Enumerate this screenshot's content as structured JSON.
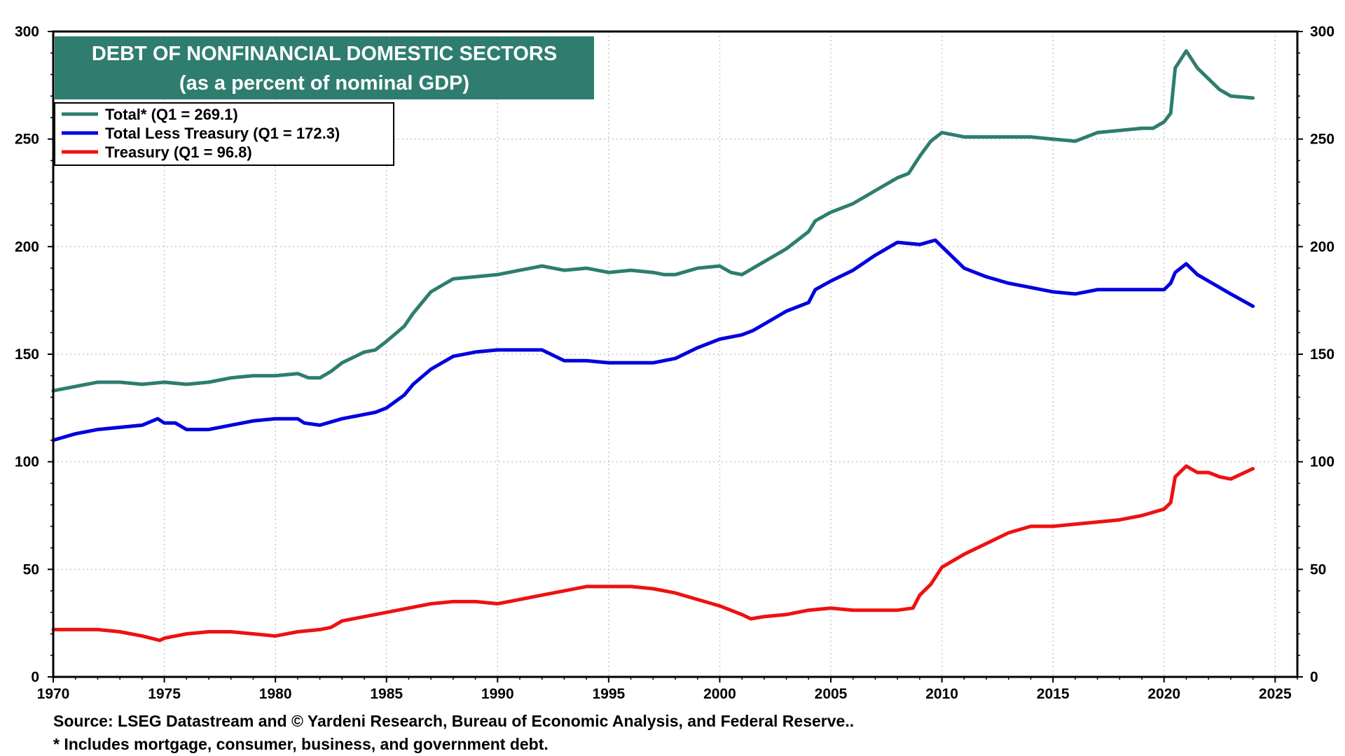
{
  "chart_data": {
    "type": "line",
    "title": "DEBT OF NONFINANCIAL DOMESTIC SECTORS",
    "subtitle": "(as a percent of nominal GDP)",
    "xlabel": "",
    "ylabel": "",
    "xlim": [
      1970,
      2026
    ],
    "ylim": [
      0,
      300
    ],
    "x_ticks": [
      "1970",
      "1975",
      "1980",
      "1985",
      "1990",
      "1995",
      "2000",
      "2005",
      "2010",
      "2015",
      "2020",
      "2025"
    ],
    "y_ticks": [
      "0",
      "50",
      "100",
      "150",
      "200",
      "250",
      "300"
    ],
    "grid": true,
    "legend_position": "top-left",
    "series": [
      {
        "name": "Total* (Q1 = 269.1)",
        "color": "#2e7d6f",
        "points": [
          [
            1970,
            133
          ],
          [
            1971,
            135
          ],
          [
            1972,
            137
          ],
          [
            1973,
            137
          ],
          [
            1974,
            136
          ],
          [
            1975,
            137
          ],
          [
            1976,
            136
          ],
          [
            1977,
            137
          ],
          [
            1978,
            139
          ],
          [
            1979,
            140
          ],
          [
            1980,
            140
          ],
          [
            1981,
            141
          ],
          [
            1981.5,
            139
          ],
          [
            1982,
            139
          ],
          [
            1982.5,
            142
          ],
          [
            1983,
            146
          ],
          [
            1984,
            151
          ],
          [
            1984.5,
            152
          ],
          [
            1985,
            156
          ],
          [
            1985.8,
            163
          ],
          [
            1986.2,
            169
          ],
          [
            1987,
            179
          ],
          [
            1988,
            185
          ],
          [
            1989,
            186
          ],
          [
            1990,
            187
          ],
          [
            1991,
            189
          ],
          [
            1992,
            191
          ],
          [
            1993,
            189
          ],
          [
            1994,
            190
          ],
          [
            1995,
            188
          ],
          [
            1996,
            189
          ],
          [
            1997,
            188
          ],
          [
            1997.5,
            187
          ],
          [
            1998,
            187
          ],
          [
            1999,
            190
          ],
          [
            2000,
            191
          ],
          [
            2000.5,
            188
          ],
          [
            2001,
            187
          ],
          [
            2001.5,
            190
          ],
          [
            2002,
            193
          ],
          [
            2003,
            199
          ],
          [
            2003.5,
            203
          ],
          [
            2004,
            207
          ],
          [
            2004.3,
            212
          ],
          [
            2005,
            216
          ],
          [
            2006,
            220
          ],
          [
            2007,
            226
          ],
          [
            2008,
            232
          ],
          [
            2008.5,
            234
          ],
          [
            2009,
            242
          ],
          [
            2009.5,
            249
          ],
          [
            2010,
            253
          ],
          [
            2011,
            251
          ],
          [
            2012,
            251
          ],
          [
            2013,
            251
          ],
          [
            2014,
            251
          ],
          [
            2015,
            250
          ],
          [
            2016,
            249
          ],
          [
            2017,
            253
          ],
          [
            2018,
            254
          ],
          [
            2019,
            255
          ],
          [
            2019.5,
            255
          ],
          [
            2020,
            258
          ],
          [
            2020.3,
            262
          ],
          [
            2020.5,
            283
          ],
          [
            2021,
            291
          ],
          [
            2021.5,
            283
          ],
          [
            2022,
            278
          ],
          [
            2022.5,
            273
          ],
          [
            2023,
            270
          ],
          [
            2024,
            269.1
          ]
        ]
      },
      {
        "name": "Total Less Treasury (Q1 = 172.3)",
        "color": "#0000dd",
        "points": [
          [
            1970,
            110
          ],
          [
            1971,
            113
          ],
          [
            1972,
            115
          ],
          [
            1973,
            116
          ],
          [
            1974,
            117
          ],
          [
            1974.7,
            120
          ],
          [
            1975,
            118
          ],
          [
            1975.5,
            118
          ],
          [
            1976,
            115
          ],
          [
            1977,
            115
          ],
          [
            1978,
            117
          ],
          [
            1979,
            119
          ],
          [
            1980,
            120
          ],
          [
            1981,
            120
          ],
          [
            1981.3,
            118
          ],
          [
            1982,
            117
          ],
          [
            1983,
            120
          ],
          [
            1984,
            122
          ],
          [
            1984.5,
            123
          ],
          [
            1985,
            125
          ],
          [
            1985.8,
            131
          ],
          [
            1986.2,
            136
          ],
          [
            1987,
            143
          ],
          [
            1988,
            149
          ],
          [
            1989,
            151
          ],
          [
            1990,
            152
          ],
          [
            1991,
            152
          ],
          [
            1992,
            152
          ],
          [
            1993,
            147
          ],
          [
            1994,
            147
          ],
          [
            1995,
            146
          ],
          [
            1996,
            146
          ],
          [
            1997,
            146
          ],
          [
            1998,
            148
          ],
          [
            1999,
            153
          ],
          [
            2000,
            157
          ],
          [
            2001,
            159
          ],
          [
            2001.5,
            161
          ],
          [
            2002,
            164
          ],
          [
            2003,
            170
          ],
          [
            2004,
            174
          ],
          [
            2004.3,
            180
          ],
          [
            2005,
            184
          ],
          [
            2006,
            189
          ],
          [
            2007,
            196
          ],
          [
            2008,
            202
          ],
          [
            2009,
            201
          ],
          [
            2009.7,
            203
          ],
          [
            2010,
            200
          ],
          [
            2011,
            190
          ],
          [
            2012,
            186
          ],
          [
            2013,
            183
          ],
          [
            2014,
            181
          ],
          [
            2015,
            179
          ],
          [
            2016,
            178
          ],
          [
            2017,
            180
          ],
          [
            2018,
            180
          ],
          [
            2019,
            180
          ],
          [
            2020,
            180
          ],
          [
            2020.3,
            183
          ],
          [
            2020.5,
            188
          ],
          [
            2021,
            192
          ],
          [
            2021.5,
            187
          ],
          [
            2022,
            184
          ],
          [
            2023,
            178
          ],
          [
            2024,
            172.3
          ]
        ]
      },
      {
        "name": "Treasury (Q1 = 96.8)",
        "color": "#ee1111",
        "points": [
          [
            1970,
            22
          ],
          [
            1971,
            22
          ],
          [
            1972,
            22
          ],
          [
            1973,
            21
          ],
          [
            1974,
            19
          ],
          [
            1974.8,
            17
          ],
          [
            1975,
            18
          ],
          [
            1976,
            20
          ],
          [
            1977,
            21
          ],
          [
            1978,
            21
          ],
          [
            1979,
            20
          ],
          [
            1980,
            19
          ],
          [
            1981,
            21
          ],
          [
            1982,
            22
          ],
          [
            1982.5,
            23
          ],
          [
            1983,
            26
          ],
          [
            1984,
            28
          ],
          [
            1985,
            30
          ],
          [
            1986,
            32
          ],
          [
            1987,
            34
          ],
          [
            1988,
            35
          ],
          [
            1989,
            35
          ],
          [
            1990,
            34
          ],
          [
            1991,
            36
          ],
          [
            1992,
            38
          ],
          [
            1993,
            40
          ],
          [
            1994,
            42
          ],
          [
            1995,
            42
          ],
          [
            1996,
            42
          ],
          [
            1997,
            41
          ],
          [
            1998,
            39
          ],
          [
            1999,
            36
          ],
          [
            2000,
            33
          ],
          [
            2001,
            29
          ],
          [
            2001.4,
            27
          ],
          [
            2002,
            28
          ],
          [
            2003,
            29
          ],
          [
            2004,
            31
          ],
          [
            2005,
            32
          ],
          [
            2006,
            31
          ],
          [
            2007,
            31
          ],
          [
            2008,
            31
          ],
          [
            2008.7,
            32
          ],
          [
            2009,
            38
          ],
          [
            2009.5,
            43
          ],
          [
            2010,
            51
          ],
          [
            2011,
            57
          ],
          [
            2012,
            62
          ],
          [
            2013,
            67
          ],
          [
            2014,
            70
          ],
          [
            2015,
            70
          ],
          [
            2016,
            71
          ],
          [
            2017,
            72
          ],
          [
            2018,
            73
          ],
          [
            2019,
            75
          ],
          [
            2020,
            78
          ],
          [
            2020.3,
            81
          ],
          [
            2020.5,
            93
          ],
          [
            2021,
            98
          ],
          [
            2021.5,
            95
          ],
          [
            2022,
            95
          ],
          [
            2022.5,
            93
          ],
          [
            2023,
            92
          ],
          [
            2024,
            96.8
          ]
        ]
      }
    ],
    "source_note": "Source: LSEG Datastream and © Yardeni Research, Bureau of Economic Analysis, and Federal Reserve..",
    "footnote": "* Includes mortgage, consumer, business, and government debt."
  }
}
